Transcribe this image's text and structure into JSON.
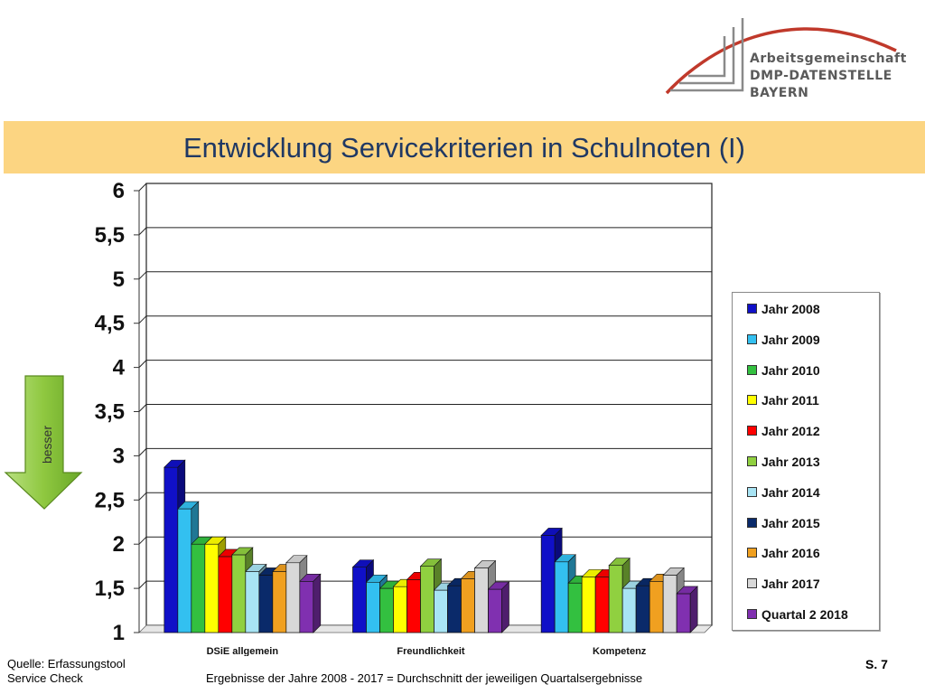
{
  "logo": {
    "line1": "Arbeitsgemeinschaft",
    "line2": "DMP-DATENSTELLE BAYERN"
  },
  "slide_title": "Entwicklung Servicekriterien in Schulnoten (I)",
  "arrow_label": "besser",
  "footer": {
    "source_line1": "Quelle: Erfassungstool",
    "source_line2": "Service Check",
    "note": "Ergebnisse der Jahre 2008 - 2017 = Durchschnitt der jeweiligen Quartalsergebnisse",
    "page": "S. 7"
  },
  "chart_data": {
    "type": "bar",
    "title": "",
    "xlabel": "",
    "ylabel": "",
    "ylim": [
      1,
      6
    ],
    "yticks": [
      "1",
      "1,5",
      "2",
      "2,5",
      "3",
      "3,5",
      "4",
      "4,5",
      "5",
      "5,5",
      "6"
    ],
    "grid": true,
    "legend_position": "right",
    "categories": [
      "DSiE allgemein",
      "Freundlichkeit",
      "Kompetenz"
    ],
    "series": [
      {
        "name": "Jahr 2008",
        "color": "#1010c8",
        "values": [
          2.87,
          1.74,
          2.1
        ]
      },
      {
        "name": "Jahr 2009",
        "color": "#33c0f0",
        "values": [
          2.4,
          1.57,
          1.8
        ]
      },
      {
        "name": "Jahr 2010",
        "color": "#33c040",
        "values": [
          2.0,
          1.5,
          1.56
        ]
      },
      {
        "name": "Jahr 2011",
        "color": "#ffff00",
        "values": [
          2.0,
          1.52,
          1.63
        ]
      },
      {
        "name": "Jahr 2012",
        "color": "#ff0000",
        "values": [
          1.86,
          1.6,
          1.63
        ]
      },
      {
        "name": "Jahr 2013",
        "color": "#90d040",
        "values": [
          1.88,
          1.75,
          1.76
        ]
      },
      {
        "name": "Jahr 2014",
        "color": "#a8e4f4",
        "values": [
          1.69,
          1.48,
          1.5
        ]
      },
      {
        "name": "Jahr 2015",
        "color": "#0a2a6a",
        "values": [
          1.65,
          1.53,
          1.53
        ]
      },
      {
        "name": "Jahr 2016",
        "color": "#f0a020",
        "values": [
          1.69,
          1.61,
          1.58
        ]
      },
      {
        "name": "Jahr 2017",
        "color": "#d8d8d8",
        "values": [
          1.79,
          1.73,
          1.65
        ]
      },
      {
        "name": "Quartal 2 2018",
        "color": "#8030b0",
        "values": [
          1.58,
          1.49,
          1.44
        ]
      }
    ]
  }
}
